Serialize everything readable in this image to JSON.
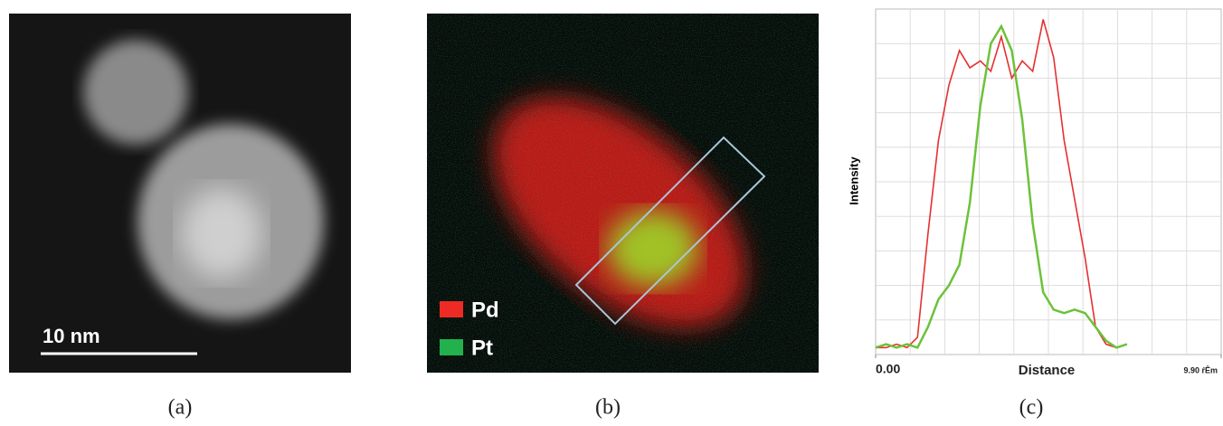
{
  "panels": {
    "a": {
      "caption": "(a)",
      "scale_bar": "10 nm"
    },
    "b": {
      "caption": "(b)",
      "legend": [
        {
          "name": "Pd",
          "color": "#ee2a24"
        },
        {
          "name": "Pt",
          "color": "#22b14c"
        }
      ]
    }
  },
  "chart_data": {
    "type": "line",
    "caption": "(c)",
    "x_label": "Distance",
    "y_label": "Intensity",
    "x": [
      0,
      0.3,
      0.6,
      0.9,
      1.2,
      1.5,
      1.8,
      2.1,
      2.4,
      2.7,
      3.0,
      3.3,
      3.6,
      3.9,
      4.2,
      4.5,
      4.8,
      5.1,
      5.4,
      5.7,
      6.0,
      6.3,
      6.6,
      6.9,
      7.2
    ],
    "series": [
      {
        "name": "Pd",
        "color": "#e53030",
        "values": [
          2,
          2,
          3,
          2,
          5,
          35,
          62,
          78,
          88,
          83,
          85,
          82,
          92,
          80,
          85,
          82,
          97,
          86,
          62,
          45,
          28,
          8,
          3,
          2,
          3
        ]
      },
      {
        "name": "Pt",
        "color": "#6cc23a",
        "values": [
          2,
          3,
          2,
          3,
          2,
          8,
          16,
          20,
          26,
          44,
          72,
          90,
          95,
          88,
          68,
          38,
          18,
          13,
          12,
          13,
          12,
          8,
          4,
          2,
          3
        ]
      }
    ],
    "xlim": [
      0,
      9.9
    ],
    "xticks": [
      {
        "value": 0,
        "label": "0.00"
      },
      {
        "value": 9.9,
        "label": "9.90 ŕÊm"
      }
    ],
    "ylim": [
      0,
      100
    ],
    "grid": true
  }
}
